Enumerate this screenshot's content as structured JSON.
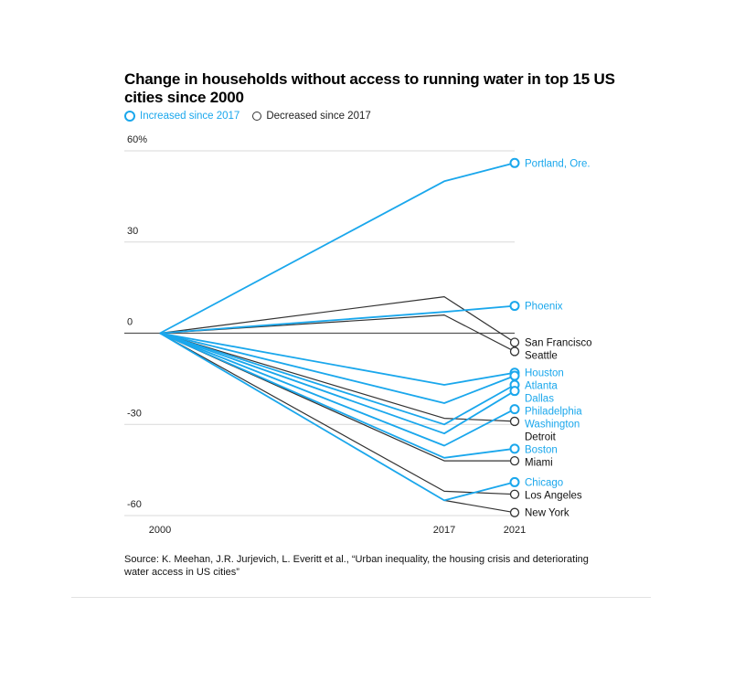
{
  "title": "Change in households without access to running water in top 15 US cities since 2000",
  "legend": {
    "increased": "Increased since 2017",
    "decreased": "Decreased since 2017"
  },
  "colors": {
    "increased": "#1aa7ec",
    "decreased": "#333333",
    "grid": "#d9d9d9",
    "zero": "#555555"
  },
  "source": "Source: K. Meehan, J.R. Jurjevich, L. Everitt et al., “Urban inequality, the housing crisis and deteriorating water access in US cities”",
  "chart_data": {
    "type": "line",
    "title": "Change in households without access to running water in top 15 US cities since 2000",
    "xlabel": "",
    "ylabel": "",
    "x": [
      2000,
      2017,
      2021
    ],
    "x_tick_labels": [
      "2000",
      "2017",
      "2021"
    ],
    "ylim": [
      -60,
      60
    ],
    "y_ticks": [
      60,
      30,
      0,
      -30,
      -60
    ],
    "y_tick_labels": [
      "60%",
      "30",
      "0",
      "-30",
      "-60"
    ],
    "series": [
      {
        "name": "Portland, Ore.",
        "status": "increased",
        "values": [
          0,
          50,
          56
        ]
      },
      {
        "name": "Phoenix",
        "status": "increased",
        "values": [
          0,
          7,
          9
        ]
      },
      {
        "name": "San Francisco",
        "status": "decreased",
        "values": [
          0,
          12,
          -3
        ]
      },
      {
        "name": "Seattle",
        "status": "decreased",
        "values": [
          0,
          6,
          -6
        ]
      },
      {
        "name": "Houston",
        "status": "increased",
        "values": [
          0,
          -17,
          -13
        ]
      },
      {
        "name": "Atlanta",
        "status": "increased",
        "values": [
          0,
          -23,
          -14
        ]
      },
      {
        "name": "Dallas",
        "status": "increased",
        "values": [
          0,
          -30,
          -17
        ]
      },
      {
        "name": "Philadelphia",
        "status": "increased",
        "values": [
          0,
          -33,
          -19
        ]
      },
      {
        "name": "Washington",
        "status": "increased",
        "values": [
          0,
          -37,
          -25
        ]
      },
      {
        "name": "Detroit",
        "status": "decreased",
        "values": [
          0,
          -28,
          -29
        ]
      },
      {
        "name": "Boston",
        "status": "increased",
        "values": [
          0,
          -41,
          -38
        ]
      },
      {
        "name": "Miami",
        "status": "decreased",
        "values": [
          0,
          -42,
          -42
        ]
      },
      {
        "name": "Chicago",
        "status": "increased",
        "values": [
          0,
          -55,
          -49
        ]
      },
      {
        "name": "Los Angeles",
        "status": "decreased",
        "values": [
          0,
          -52,
          -53
        ]
      },
      {
        "name": "New York",
        "status": "decreased",
        "values": [
          0,
          -55,
          -59
        ]
      }
    ]
  }
}
